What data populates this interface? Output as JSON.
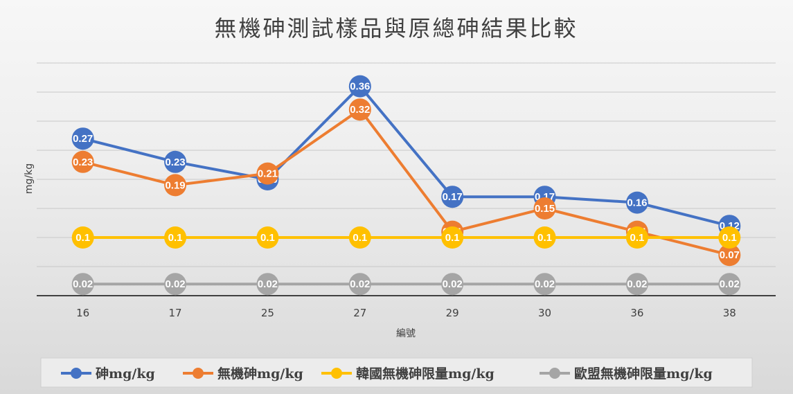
{
  "chart_data": {
    "type": "line",
    "title": "無機砷測試樣品與原總砷結果比較",
    "xlabel": "編號",
    "ylabel": "mg/kg",
    "categories": [
      "16",
      "17",
      "25",
      "27",
      "29",
      "30",
      "36",
      "38"
    ],
    "ylim": [
      0,
      0.4
    ],
    "grid": true,
    "legend_position": "bottom",
    "series": [
      {
        "name": "砷mg/kg",
        "color": "#4472C4",
        "values": [
          0.27,
          0.23,
          0.2,
          0.36,
          0.17,
          0.17,
          0.16,
          0.12
        ],
        "labels": [
          "0.27",
          "0.23",
          "0.20",
          "0.36",
          "0.17",
          "0.17",
          "0.16",
          "0.12"
        ]
      },
      {
        "name": "無機砷mg/kg",
        "color": "#ED7D31",
        "values": [
          0.23,
          0.19,
          0.21,
          0.32,
          0.11,
          0.15,
          0.11,
          0.07
        ],
        "labels": [
          "0.23",
          "0.19",
          "0.21",
          "0.32",
          "0.11",
          "0.15",
          "0.11",
          "0.07"
        ]
      },
      {
        "name": "韓國無機砷限量mg/kg",
        "color": "#FFC000",
        "values": [
          0.1,
          0.1,
          0.1,
          0.1,
          0.1,
          0.1,
          0.1,
          0.1
        ],
        "labels": [
          "0.1",
          "0.1",
          "0.1",
          "0.1",
          "0.1",
          "0.1",
          "0.1",
          "0.1"
        ]
      },
      {
        "name": "歐盟無機砷限量mg/kg",
        "color": "#A5A5A5",
        "values": [
          0.02,
          0.02,
          0.02,
          0.02,
          0.02,
          0.02,
          0.02,
          0.02
        ],
        "labels": [
          "0.02",
          "0.02",
          "0.02",
          "0.02",
          "0.02",
          "0.02",
          "0.02",
          "0.02"
        ]
      }
    ]
  }
}
